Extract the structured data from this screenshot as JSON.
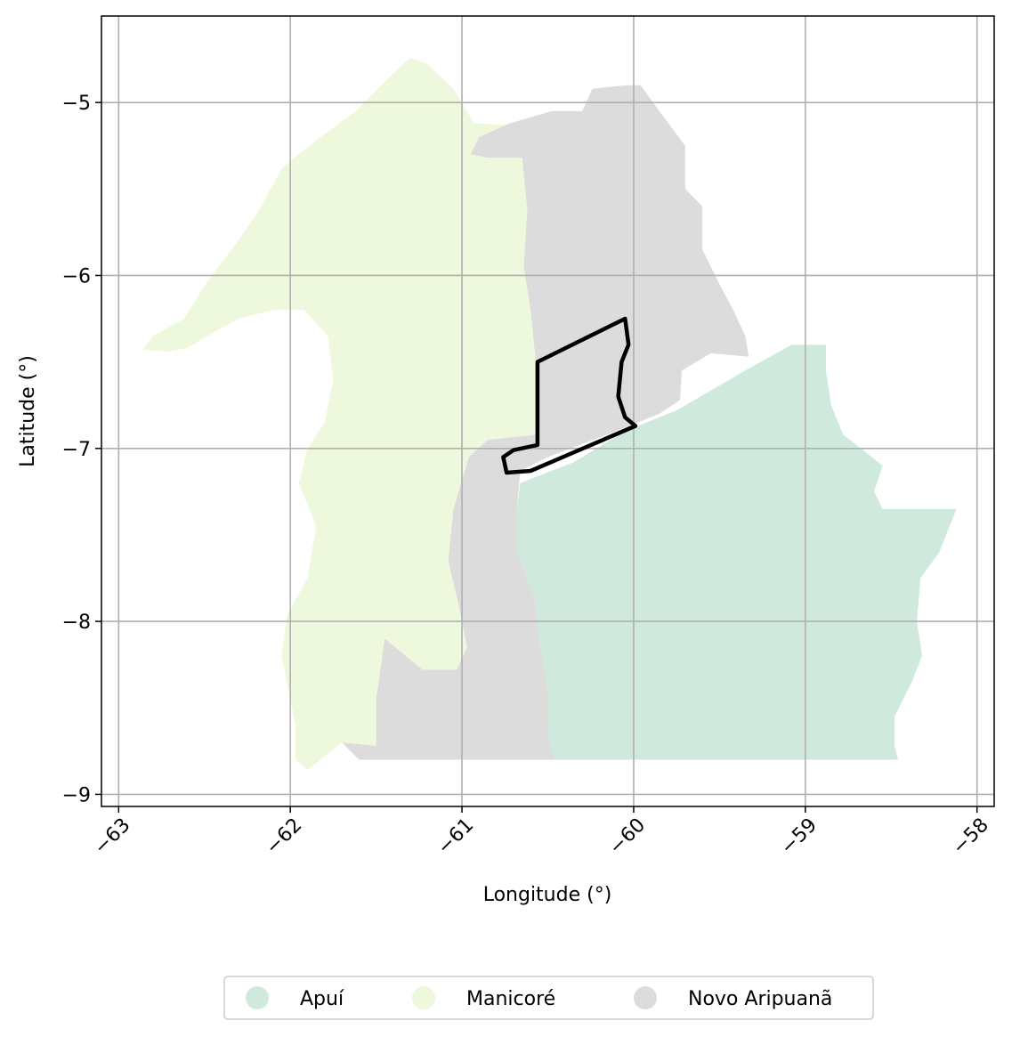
{
  "chart_data": {
    "type": "map",
    "xlabel": "Longitude (°)",
    "ylabel": "Latitude (°)",
    "xlim": [
      -63.1,
      -57.9
    ],
    "ylim": [
      -9.07,
      -4.5
    ],
    "x_ticks": [
      -63,
      -62,
      -61,
      -60,
      -59,
      -58
    ],
    "y_ticks": [
      -5,
      -6,
      -7,
      -8,
      -9
    ],
    "x_tick_labels": [
      "−63",
      "−62",
      "−61",
      "−60",
      "−59",
      "−58"
    ],
    "y_tick_labels": [
      "−5",
      "−6",
      "−7",
      "−8",
      "−9"
    ],
    "grid": true,
    "legend_position": "bottom",
    "legend": [
      {
        "name": "Apuí",
        "color": "#cfeadd"
      },
      {
        "name": "Manicoré",
        "color": "#eef8dd"
      },
      {
        "name": "Novo Aripuanã",
        "color": "#dcdcdc"
      }
    ],
    "regions": [
      {
        "name": "Manicoré",
        "color": "#eef8dd",
        "coords": [
          [
            -62.86,
            -6.43
          ],
          [
            -62.8,
            -6.35
          ],
          [
            -62.62,
            -6.25
          ],
          [
            -62.48,
            -6.03
          ],
          [
            -62.32,
            -5.82
          ],
          [
            -62.18,
            -5.62
          ],
          [
            -62.05,
            -5.38
          ],
          [
            -61.85,
            -5.22
          ],
          [
            -61.62,
            -5.05
          ],
          [
            -61.42,
            -4.85
          ],
          [
            -61.3,
            -4.74
          ],
          [
            -61.2,
            -4.78
          ],
          [
            -61.05,
            -4.92
          ],
          [
            -60.93,
            -5.12
          ],
          [
            -60.73,
            -5.13
          ],
          [
            -60.65,
            -5.32
          ],
          [
            -60.62,
            -5.62
          ],
          [
            -60.64,
            -5.95
          ],
          [
            -60.6,
            -6.2
          ],
          [
            -60.57,
            -6.5
          ],
          [
            -60.56,
            -6.75
          ],
          [
            -60.56,
            -6.92
          ],
          [
            -60.85,
            -6.95
          ],
          [
            -60.96,
            -7.05
          ],
          [
            -61.05,
            -7.35
          ],
          [
            -61.08,
            -7.65
          ],
          [
            -61.02,
            -7.9
          ],
          [
            -60.97,
            -8.15
          ],
          [
            -61.03,
            -8.28
          ],
          [
            -61.23,
            -8.28
          ],
          [
            -61.45,
            -8.1
          ],
          [
            -61.5,
            -8.45
          ],
          [
            -61.5,
            -8.72
          ],
          [
            -61.7,
            -8.7
          ],
          [
            -61.9,
            -8.86
          ],
          [
            -61.97,
            -8.8
          ],
          [
            -61.97,
            -8.6
          ],
          [
            -62.05,
            -8.2
          ],
          [
            -62.02,
            -7.97
          ],
          [
            -61.9,
            -7.75
          ],
          [
            -61.85,
            -7.45
          ],
          [
            -61.95,
            -7.2
          ],
          [
            -61.9,
            -7.0
          ],
          [
            -61.8,
            -6.85
          ],
          [
            -61.75,
            -6.6
          ],
          [
            -61.78,
            -6.35
          ],
          [
            -61.92,
            -6.2
          ],
          [
            -62.1,
            -6.2
          ],
          [
            -62.3,
            -6.25
          ],
          [
            -62.45,
            -6.33
          ],
          [
            -62.6,
            -6.42
          ],
          [
            -62.72,
            -6.44
          ]
        ]
      },
      {
        "name": "Novo Aripuanã",
        "color": "#dcdcdc",
        "coords": [
          [
            -60.72,
            -5.12
          ],
          [
            -60.48,
            -5.05
          ],
          [
            -60.3,
            -5.05
          ],
          [
            -60.24,
            -4.92
          ],
          [
            -60.04,
            -4.9
          ],
          [
            -59.96,
            -4.9
          ],
          [
            -59.85,
            -5.05
          ],
          [
            -59.7,
            -5.25
          ],
          [
            -59.7,
            -5.5
          ],
          [
            -59.6,
            -5.6
          ],
          [
            -59.6,
            -5.85
          ],
          [
            -59.5,
            -6.05
          ],
          [
            -59.42,
            -6.2
          ],
          [
            -59.35,
            -6.35
          ],
          [
            -59.33,
            -6.47
          ],
          [
            -59.55,
            -6.45
          ],
          [
            -59.72,
            -6.55
          ],
          [
            -59.73,
            -6.72
          ],
          [
            -59.85,
            -6.8
          ],
          [
            -60.1,
            -6.9
          ],
          [
            -60.5,
            -7.05
          ],
          [
            -60.66,
            -7.13
          ],
          [
            -60.68,
            -7.35
          ],
          [
            -60.68,
            -7.6
          ],
          [
            -60.58,
            -7.85
          ],
          [
            -60.55,
            -8.1
          ],
          [
            -60.5,
            -8.4
          ],
          [
            -60.5,
            -8.65
          ],
          [
            -60.46,
            -8.8
          ],
          [
            -61.6,
            -8.8
          ],
          [
            -61.7,
            -8.7
          ],
          [
            -61.5,
            -8.72
          ],
          [
            -61.5,
            -8.45
          ],
          [
            -61.45,
            -8.1
          ],
          [
            -61.23,
            -8.28
          ],
          [
            -61.03,
            -8.28
          ],
          [
            -60.97,
            -8.15
          ],
          [
            -61.02,
            -7.9
          ],
          [
            -61.08,
            -7.65
          ],
          [
            -61.05,
            -7.35
          ],
          [
            -60.96,
            -7.05
          ],
          [
            -60.85,
            -6.95
          ],
          [
            -60.56,
            -6.92
          ],
          [
            -60.56,
            -6.75
          ],
          [
            -60.57,
            -6.5
          ],
          [
            -60.6,
            -6.2
          ],
          [
            -60.64,
            -5.95
          ],
          [
            -60.62,
            -5.62
          ],
          [
            -60.65,
            -5.32
          ],
          [
            -60.85,
            -5.32
          ],
          [
            -60.95,
            -5.3
          ],
          [
            -60.9,
            -5.2
          ]
        ]
      },
      {
        "name": "Apuí",
        "color": "#cfeadd",
        "coords": [
          [
            -60.66,
            -7.2
          ],
          [
            -60.35,
            -7.08
          ],
          [
            -60.05,
            -6.9
          ],
          [
            -59.75,
            -6.78
          ],
          [
            -59.35,
            -6.55
          ],
          [
            -59.08,
            -6.4
          ],
          [
            -58.88,
            -6.4
          ],
          [
            -58.88,
            -6.55
          ],
          [
            -58.85,
            -6.75
          ],
          [
            -58.78,
            -6.92
          ],
          [
            -58.65,
            -7.02
          ],
          [
            -58.55,
            -7.1
          ],
          [
            -58.6,
            -7.25
          ],
          [
            -58.55,
            -7.35
          ],
          [
            -58.12,
            -7.35
          ],
          [
            -58.22,
            -7.6
          ],
          [
            -58.33,
            -7.75
          ],
          [
            -58.35,
            -8.0
          ],
          [
            -58.32,
            -8.2
          ],
          [
            -58.38,
            -8.35
          ],
          [
            -58.48,
            -8.55
          ],
          [
            -58.48,
            -8.72
          ],
          [
            -58.46,
            -8.8
          ],
          [
            -60.46,
            -8.8
          ],
          [
            -60.5,
            -8.65
          ],
          [
            -60.5,
            -8.4
          ],
          [
            -60.55,
            -8.1
          ],
          [
            -60.58,
            -7.85
          ],
          [
            -60.68,
            -7.6
          ],
          [
            -60.68,
            -7.35
          ]
        ]
      }
    ],
    "outline": {
      "color": "#000000",
      "coords": [
        [
          -60.56,
          -6.5
        ],
        [
          -60.05,
          -6.25
        ],
        [
          -60.03,
          -6.4
        ],
        [
          -60.07,
          -6.5
        ],
        [
          -60.09,
          -6.7
        ],
        [
          -60.05,
          -6.82
        ],
        [
          -59.99,
          -6.87
        ],
        [
          -60.6,
          -7.13
        ],
        [
          -60.74,
          -7.14
        ],
        [
          -60.76,
          -7.05
        ],
        [
          -60.7,
          -7.01
        ],
        [
          -60.56,
          -6.98
        ],
        [
          -60.56,
          -6.5
        ]
      ]
    }
  }
}
